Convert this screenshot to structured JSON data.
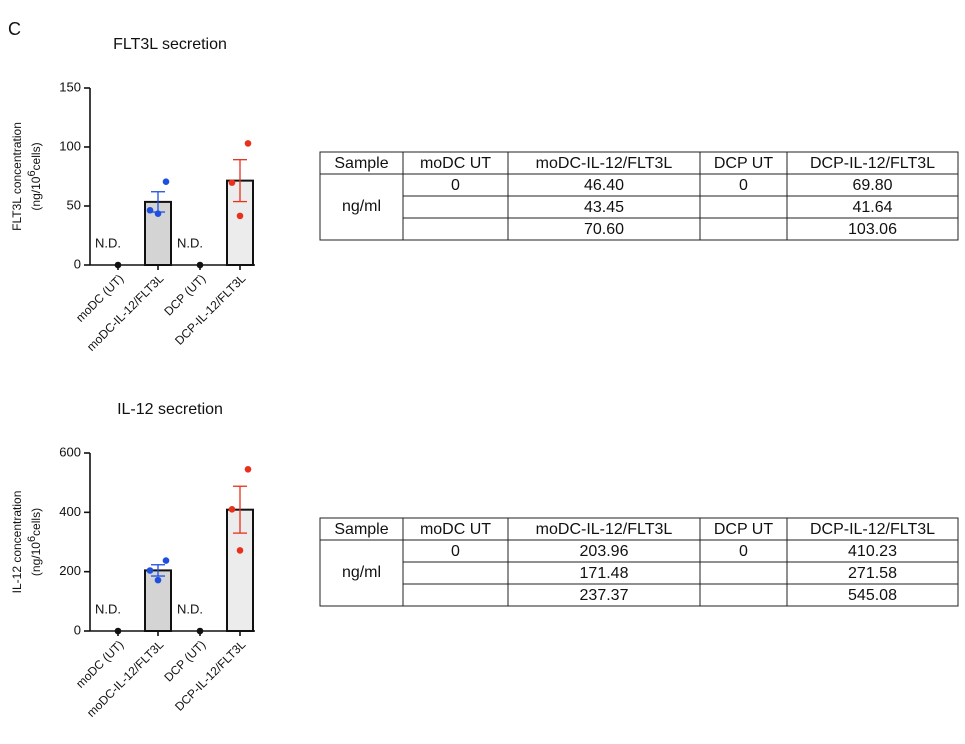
{
  "panel_label": "C",
  "chart_data": [
    {
      "type": "bar",
      "title": "FLT3L secretion",
      "y_label": "FLT3L concentration",
      "y_unit": {
        "base": "(ng/10",
        "sup": "6",
        "rest": "cells)"
      },
      "categories": [
        "moDC (UT)",
        "moDC-IL-12/FLT3L",
        "DCP (UT)",
        "DCP-IL-12/FLT3L"
      ],
      "values": [
        0,
        53.48,
        0,
        71.5
      ],
      "errors": [
        null,
        8.6,
        null,
        17.75
      ],
      "bar_colors": [
        "#d4d4d4",
        "#d4d4d4",
        "#ececec",
        "#ececec"
      ],
      "annotations": [
        "N.D.",
        null,
        "N.D.",
        null
      ],
      "points": [
        {
          "color": "#111111",
          "values": [
            0
          ]
        },
        {
          "color": "#1f4fe0",
          "values": [
            46.4,
            43.45,
            70.6
          ]
        },
        {
          "color": "#111111",
          "values": [
            0
          ]
        },
        {
          "color": "#e8301c",
          "values": [
            69.8,
            41.64,
            103.06
          ]
        }
      ],
      "error_colors": [
        "#111111",
        "#1f4fe0",
        "#111111",
        "#e8301c"
      ],
      "ylim": [
        0,
        150
      ],
      "yticks": [
        0,
        50,
        100,
        150
      ]
    },
    {
      "type": "bar",
      "title": "IL-12 secretion",
      "y_label": "IL-12 concentration",
      "y_unit": {
        "base": "(ng/10",
        "sup": "6",
        "rest": "cells)"
      },
      "categories": [
        "moDC (UT)",
        "moDC-IL-12/FLT3L",
        "DCP (UT)",
        "DCP-IL-12/FLT3L"
      ],
      "values": [
        0,
        204.27,
        0,
        408.96
      ],
      "errors": [
        null,
        19.0,
        null,
        79.0
      ],
      "bar_colors": [
        "#d4d4d4",
        "#d4d4d4",
        "#ececec",
        "#ececec"
      ],
      "annotations": [
        "N.D.",
        null,
        "N.D.",
        null
      ],
      "points": [
        {
          "color": "#111111",
          "values": [
            0
          ]
        },
        {
          "color": "#1f4fe0",
          "values": [
            203.96,
            171.48,
            237.37
          ]
        },
        {
          "color": "#111111",
          "values": [
            0
          ]
        },
        {
          "color": "#e8301c",
          "values": [
            410.23,
            271.58,
            545.08
          ]
        }
      ],
      "error_colors": [
        "#111111",
        "#1f4fe0",
        "#111111",
        "#e8301c"
      ],
      "ylim": [
        0,
        600
      ],
      "yticks": [
        0,
        200,
        400,
        600
      ]
    }
  ],
  "tables": [
    {
      "header": [
        "Sample",
        "moDC UT",
        "moDC-IL-12/FLT3L",
        "DCP UT",
        "DCP-IL-12/FLT3L"
      ],
      "row_label": "ng/ml",
      "rows": [
        [
          "0",
          "46.40",
          "0",
          "69.80"
        ],
        [
          null,
          "43.45",
          null,
          "41.64"
        ],
        [
          null,
          "70.60",
          null,
          "103.06"
        ]
      ]
    },
    {
      "header": [
        "Sample",
        "moDC UT",
        "moDC-IL-12/FLT3L",
        "DCP UT",
        "DCP-IL-12/FLT3L"
      ],
      "row_label": "ng/ml",
      "rows": [
        [
          "0",
          "203.96",
          "0",
          "410.23"
        ],
        [
          null,
          "171.48",
          null,
          "271.58"
        ],
        [
          null,
          "237.37",
          null,
          "545.08"
        ]
      ]
    }
  ]
}
